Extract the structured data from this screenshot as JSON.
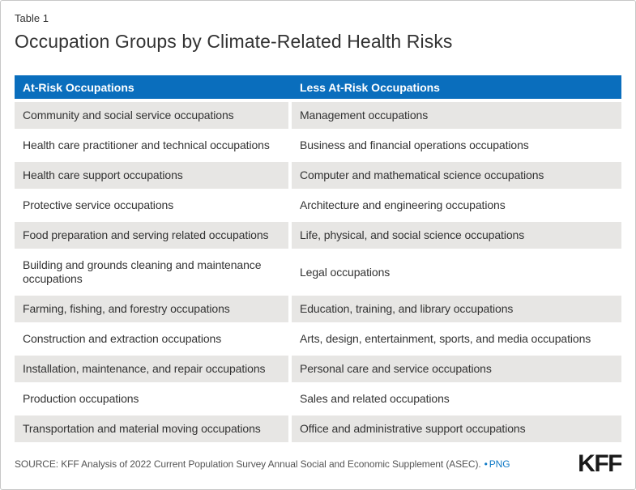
{
  "chart_data": {
    "type": "table",
    "label": "Table 1",
    "title": "Occupation Groups by Climate-Related Health Risks",
    "columns": [
      "At-Risk Occupations",
      "Less At-Risk Occupations"
    ],
    "rows": [
      {
        "left": "Community and social service occupations",
        "right": "Management occupations"
      },
      {
        "left": "Health care practitioner and technical occupations",
        "right": "Business and financial operations occupations"
      },
      {
        "left": "Health care support occupations",
        "right": "Computer and mathematical science occupations"
      },
      {
        "left": "Protective service occupations",
        "right": "Architecture and engineering occupations"
      },
      {
        "left": "Food preparation and serving related occupations",
        "right": "Life, physical, and social science occupations"
      },
      {
        "left": "Building and grounds cleaning and maintenance occupations",
        "right": "Legal occupations"
      },
      {
        "left": "Farming, fishing, and forestry occupations",
        "right": "Education, training, and library occupations"
      },
      {
        "left": "Construction and extraction occupations",
        "right": "Arts, design, entertainment, sports, and media occupations"
      },
      {
        "left": "Installation, maintenance, and repair occupations",
        "right": "Personal care and service occupations"
      },
      {
        "left": "Production occupations",
        "right": "Sales and related occupations"
      },
      {
        "left": "Transportation and material moving occupations",
        "right": "Office and administrative support occupations"
      }
    ],
    "source": "SOURCE: KFF Analysis of 2022 Current Population Survey Annual Social and Economic Supplement (ASEC).",
    "legend_position": "none",
    "grid": "off"
  },
  "footer": {
    "separator_bullet": "•",
    "png_link_label": "PNG",
    "logo_text": "KFF"
  },
  "colors": {
    "header_blue": "#0a6ebd",
    "row_stripe_gray": "#e7e6e4",
    "link_blue": "#0e79c6",
    "text_dark": "#333333",
    "source_gray": "#555555"
  }
}
